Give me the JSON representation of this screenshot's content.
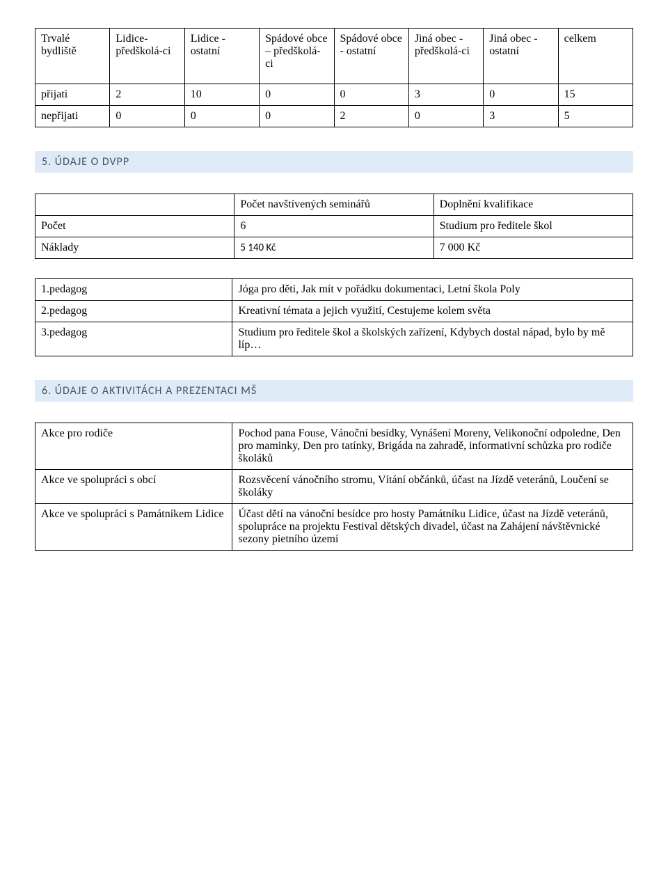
{
  "table1": {
    "headers": [
      "Trvalé bydliště",
      "Lidice- předškolá-ci",
      "Lidice - ostatní",
      "Spádové obce – předškolá-ci",
      "Spádové obce - ostatní",
      "Jiná obec - předškolá-ci",
      "Jiná obec - ostatní",
      "celkem"
    ],
    "rows": [
      {
        "label": "přijati",
        "cells": [
          "2",
          "10",
          "0",
          "0",
          "3",
          "0",
          "15"
        ]
      },
      {
        "label": "nepřijati",
        "cells": [
          "0",
          "0",
          "0",
          "2",
          "0",
          "3",
          "5"
        ]
      }
    ]
  },
  "section5": {
    "title": "5. ÚDAJE O DVPP"
  },
  "table2": {
    "header_left": "Počet navštívených seminářů",
    "header_right": "Doplnění kvalifikace",
    "rows": [
      {
        "label": "Počet",
        "mid": "6",
        "right": "Studium pro ředitele škol"
      },
      {
        "label": "Náklady",
        "mid": "5 140 Kč",
        "right": "7 000 Kč"
      }
    ]
  },
  "table3": {
    "rows": [
      {
        "label": "1.pedagog",
        "text": "Jóga pro děti, Jak mít v pořádku dokumentaci, Letní škola Poly"
      },
      {
        "label": "2.pedagog",
        "text": "Kreativní témata a jejich využití, Cestujeme kolem světa"
      },
      {
        "label": "3.pedagog",
        "text": "Studium pro ředitele škol a školských zařízení, Kdybych dostal nápad, bylo by mě líp…"
      }
    ]
  },
  "section6": {
    "title": "6. ÚDAJE O AKTIVITÁCH A PREZENTACI MŠ"
  },
  "table4": {
    "rows": [
      {
        "label": "Akce pro rodiče",
        "text": "Pochod pana Fouse, Vánoční besídky, Vynášení Moreny, Velikonoční odpoledne, Den pro maminky, Den pro tatínky, Brigáda na zahradě, informativní schůzka pro rodiče školáků"
      },
      {
        "label": "Akce ve spolupráci s obcí",
        "text": "Rozsvěcení vánočního stromu, Vítání občánků, účast na Jízdě veteránů, Loučení se školáky"
      },
      {
        "label": "Akce ve spolupráci s Památníkem Lidice",
        "text": "Účast dětí na vánoční besídce pro hosty Památníku Lidice, účast na Jízdě veteránů, spolupráce na projektu Festival dětských divadel, účast na Zahájení návštěvnické sezony pietního území"
      }
    ]
  }
}
